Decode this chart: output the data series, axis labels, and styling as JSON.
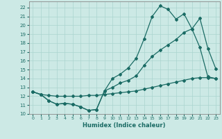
{
  "xlabel": "Humidex (Indice chaleur)",
  "ylabel": "",
  "xlim": [
    -0.5,
    23.5
  ],
  "ylim": [
    10,
    22.7
  ],
  "yticks": [
    10,
    11,
    12,
    13,
    14,
    15,
    16,
    17,
    18,
    19,
    20,
    21,
    22
  ],
  "xticks": [
    0,
    1,
    2,
    3,
    4,
    5,
    6,
    7,
    8,
    9,
    10,
    11,
    12,
    13,
    14,
    15,
    16,
    17,
    18,
    19,
    20,
    21,
    22,
    23
  ],
  "background_color": "#cce9e5",
  "grid_color": "#aad4cf",
  "line_color": "#1a6b64",
  "line1_x": [
    0,
    1,
    2,
    3,
    4,
    5,
    6,
    7,
    8,
    9,
    10,
    11,
    12,
    13,
    14,
    15,
    16,
    17,
    18,
    19,
    20,
    21,
    22,
    23
  ],
  "line1_y": [
    12.5,
    12.2,
    11.5,
    11.1,
    11.2,
    11.1,
    10.8,
    10.4,
    10.5,
    12.6,
    14.0,
    14.5,
    15.2,
    16.3,
    18.5,
    21.0,
    22.2,
    21.8,
    20.7,
    21.3,
    19.6,
    20.8,
    17.4,
    15.1
  ],
  "line2_x": [
    0,
    1,
    2,
    3,
    4,
    5,
    6,
    7,
    8,
    9,
    10,
    11,
    12,
    13,
    14,
    15,
    16,
    17,
    18,
    19,
    20,
    21,
    22,
    23
  ],
  "line2_y": [
    12.5,
    12.2,
    11.5,
    11.1,
    11.2,
    11.1,
    10.8,
    10.4,
    10.5,
    12.6,
    13.0,
    13.5,
    13.8,
    14.3,
    15.5,
    16.5,
    17.2,
    17.8,
    18.4,
    19.2,
    19.6,
    17.5,
    14.2,
    14.0
  ],
  "line3_x": [
    0,
    1,
    2,
    3,
    4,
    5,
    6,
    7,
    8,
    9,
    10,
    11,
    12,
    13,
    14,
    15,
    16,
    17,
    18,
    19,
    20,
    21,
    22,
    23
  ],
  "line3_y": [
    12.5,
    12.2,
    12.1,
    12.0,
    12.0,
    12.0,
    12.0,
    12.1,
    12.1,
    12.2,
    12.3,
    12.4,
    12.5,
    12.6,
    12.8,
    13.0,
    13.2,
    13.4,
    13.6,
    13.8,
    14.0,
    14.1,
    14.1,
    14.0
  ],
  "marker_size": 2.0,
  "line_width": 0.9
}
